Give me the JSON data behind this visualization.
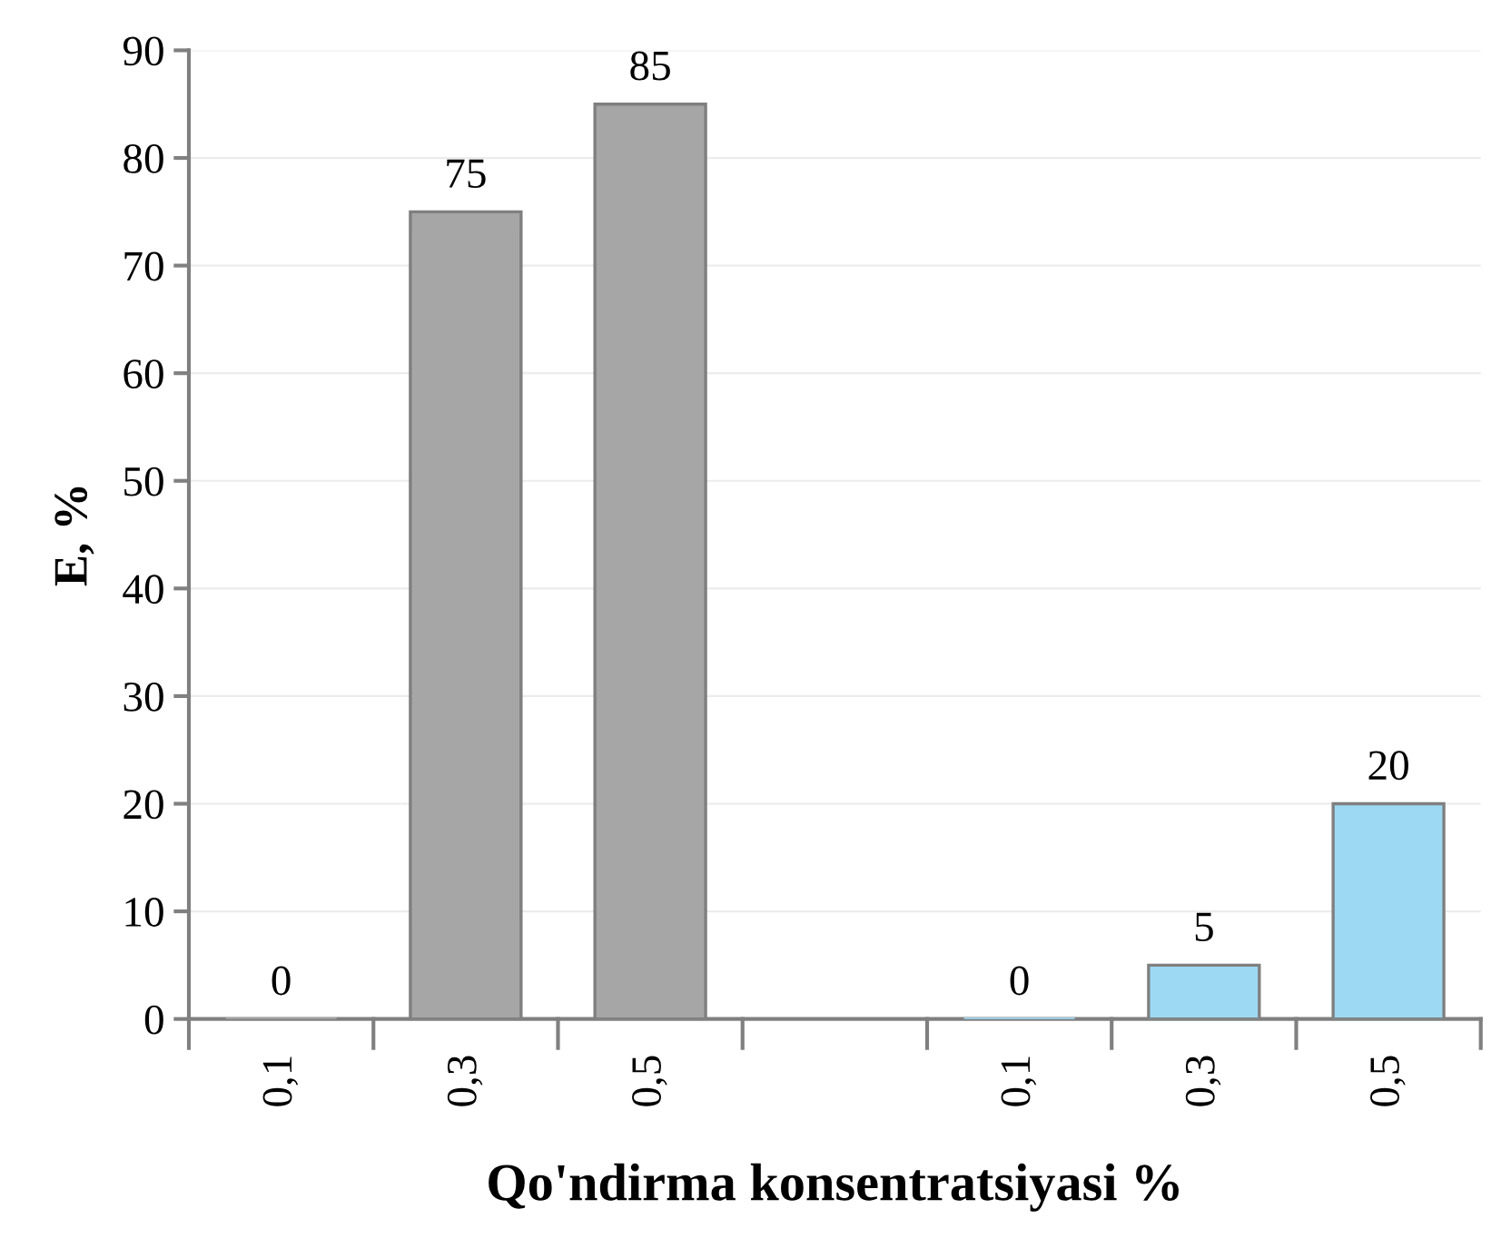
{
  "chart_data": {
    "type": "bar",
    "categories": [
      "0,1",
      "0,3",
      "0,5",
      null,
      "0,1",
      "0,3",
      "0,5"
    ],
    "values": [
      0,
      75,
      85,
      null,
      0,
      5,
      20
    ],
    "colors": [
      "#a6a6a6",
      "#a6a6a6",
      "#a6a6a6",
      "#a6a6a6",
      "#9dd9f3",
      "#9dd9f3",
      "#9dd9f3"
    ],
    "value_labels": [
      "0",
      "75",
      "85",
      null,
      "0",
      "5",
      "20"
    ],
    "xlabel": "Qo'ndirma konsentratsiyasi %",
    "ylabel": "E, %",
    "ylim": [
      0,
      90
    ],
    "yticks": [
      0,
      10,
      20,
      30,
      40,
      50,
      60,
      70,
      80,
      90
    ],
    "grid": "y"
  }
}
